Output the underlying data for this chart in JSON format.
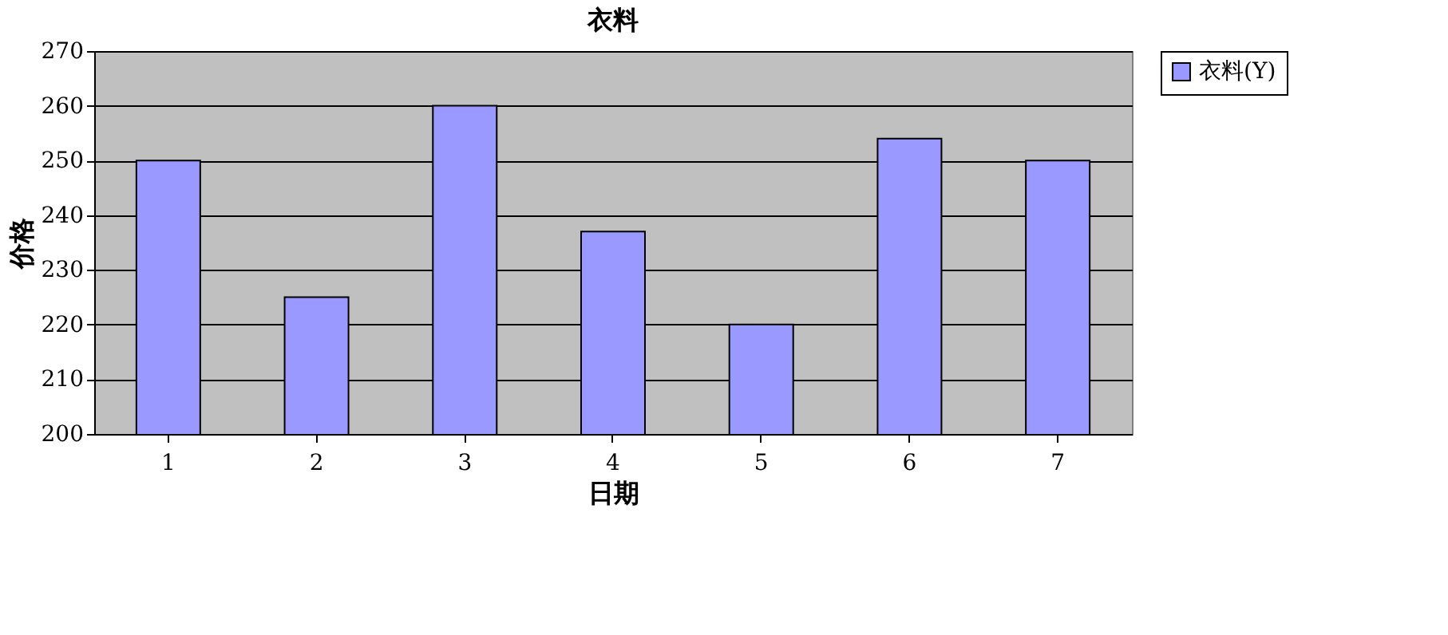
{
  "chart_data": {
    "type": "bar",
    "title": "衣料",
    "xlabel": "日期",
    "ylabel": "价格",
    "categories": [
      "1",
      "2",
      "3",
      "4",
      "5",
      "6",
      "7"
    ],
    "series": [
      {
        "name": "衣料(Y)",
        "color": "#9999ff",
        "values": [
          250,
          225,
          260,
          237,
          220,
          254,
          250
        ]
      }
    ],
    "ylim": [
      200,
      270
    ],
    "yticks": [
      200,
      210,
      220,
      230,
      240,
      250,
      260,
      270
    ],
    "grid": "y",
    "legend": "right"
  }
}
